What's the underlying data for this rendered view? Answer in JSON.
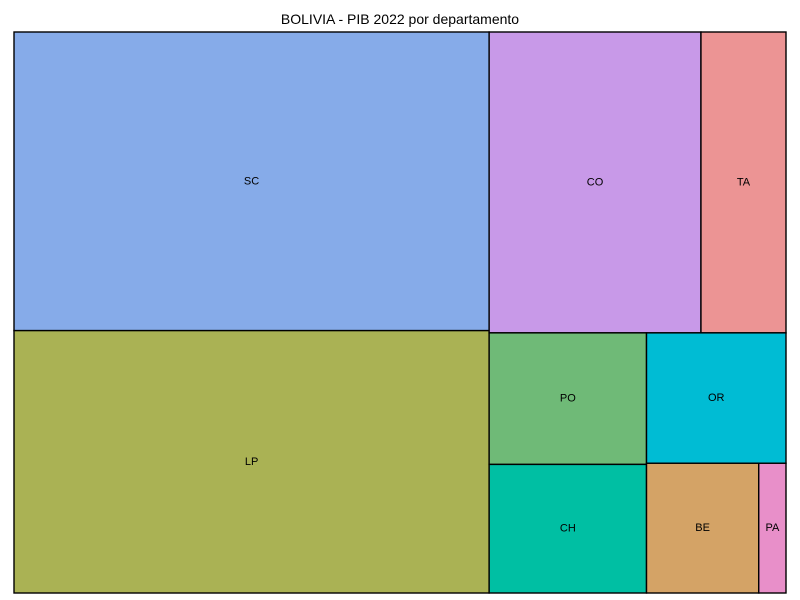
{
  "chart_data": {
    "type": "treemap",
    "title": "BOLIVIA - PIB 2022 por departamento",
    "items": [
      {
        "label": "SC",
        "value": 30.5,
        "color": "#86ABE9"
      },
      {
        "label": "LP",
        "value": 26.8,
        "color": "#AAB254"
      },
      {
        "label": "CO",
        "value": 13.7,
        "color": "#C899E8"
      },
      {
        "label": "TA",
        "value": 5.5,
        "color": "#EC9494"
      },
      {
        "label": "PO",
        "value": 4.45,
        "color": "#6FBA77"
      },
      {
        "label": "OR",
        "value": 3.91,
        "color": "#00BCD4"
      },
      {
        "label": "CH",
        "value": 4.35,
        "color": "#00BFA3"
      },
      {
        "label": "BE",
        "value": 3.13,
        "color": "#D4A366"
      },
      {
        "label": "PA",
        "value": 0.76,
        "color": "#E88FC9"
      }
    ]
  }
}
